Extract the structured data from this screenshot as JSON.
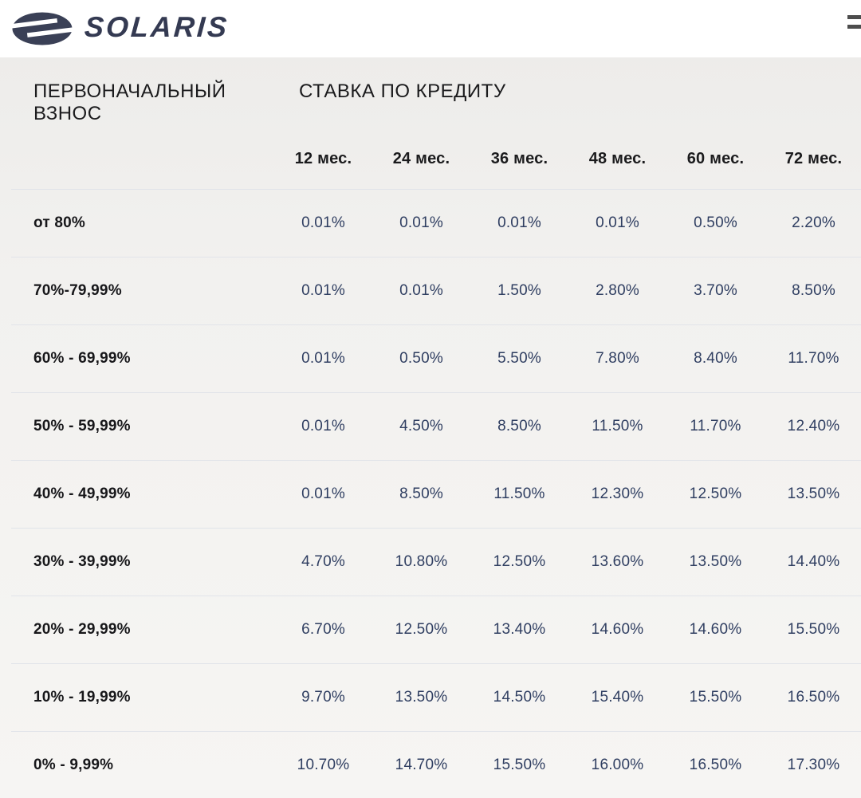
{
  "topbar": {
    "logo_text": "SOLARIS"
  },
  "colors": {
    "brand_navy": "#343a52",
    "value_text": "#2f3e61",
    "separator": "#e1e4e9",
    "topbar_bg": "#ffffff",
    "content_bg": "#f2f1ef"
  },
  "icons": {
    "logo": "solaris-s-emblem",
    "menu": "hamburger-menu"
  },
  "table": {
    "row_header_title": "ПЕРВОНАЧАЛЬНЫЙ ВЗНОС",
    "columns_title": "СТАВКА ПО КРЕДИТУ",
    "columns": [
      "12 мес.",
      "24 мес.",
      "36 мес.",
      "48 мес.",
      "60 мес.",
      "72 мес."
    ],
    "rows": [
      {
        "label": "от 80%",
        "values": [
          "0.01%",
          "0.01%",
          "0.01%",
          "0.01%",
          "0.50%",
          "2.20%"
        ]
      },
      {
        "label": "70%-79,99%",
        "values": [
          "0.01%",
          "0.01%",
          "1.50%",
          "2.80%",
          "3.70%",
          "8.50%"
        ]
      },
      {
        "label": "60% - 69,99%",
        "values": [
          "0.01%",
          "0.50%",
          "5.50%",
          "7.80%",
          "8.40%",
          "11.70%"
        ]
      },
      {
        "label": "50% - 59,99%",
        "values": [
          "0.01%",
          "4.50%",
          "8.50%",
          "11.50%",
          "11.70%",
          "12.40%"
        ]
      },
      {
        "label": "40% - 49,99%",
        "values": [
          "0.01%",
          "8.50%",
          "11.50%",
          "12.30%",
          "12.50%",
          "13.50%"
        ]
      },
      {
        "label": "30% - 39,99%",
        "values": [
          "4.70%",
          "10.80%",
          "12.50%",
          "13.60%",
          "13.50%",
          "14.40%"
        ]
      },
      {
        "label": "20% - 29,99%",
        "values": [
          "6.70%",
          "12.50%",
          "13.40%",
          "14.60%",
          "14.60%",
          "15.50%"
        ]
      },
      {
        "label": "10% - 19,99%",
        "values": [
          "9.70%",
          "13.50%",
          "14.50%",
          "15.40%",
          "15.50%",
          "16.50%"
        ]
      },
      {
        "label": "0% - 9,99%",
        "values": [
          "10.70%",
          "14.70%",
          "15.50%",
          "16.00%",
          "16.50%",
          "17.30%"
        ]
      }
    ]
  }
}
